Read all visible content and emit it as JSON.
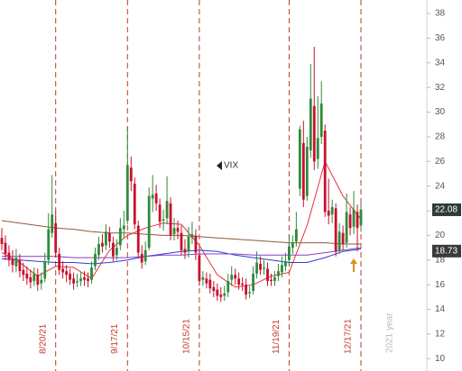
{
  "chart_data": {
    "type": "candlestick",
    "symbol": "VIX",
    "year_label": "2021 year",
    "categories": [
      null,
      null,
      null,
      null,
      null,
      null,
      null,
      null,
      null,
      null,
      null,
      null,
      null,
      null,
      null,
      "8/20/21",
      null,
      null,
      null,
      null,
      null,
      null,
      null,
      null,
      null,
      null,
      null,
      null,
      null,
      null,
      null,
      null,
      null,
      null,
      null,
      "9/17/21",
      null,
      null,
      null,
      null,
      null,
      null,
      null,
      null,
      null,
      null,
      null,
      null,
      null,
      null,
      null,
      null,
      null,
      null,
      null,
      "10/15/21",
      null,
      null,
      null,
      null,
      null,
      null,
      null,
      null,
      null,
      null,
      null,
      null,
      null,
      null,
      null,
      null,
      null,
      null,
      null,
      null,
      null,
      null,
      null,
      null,
      "11/19/21",
      null,
      null,
      null,
      null,
      null,
      null,
      null,
      null,
      null,
      null,
      null,
      null,
      null,
      null,
      null,
      null,
      null,
      null,
      null,
      "12/17/21"
    ],
    "open": [
      19.8,
      19.4,
      18.6,
      18.1,
      17.5,
      18.0,
      17.2,
      16.9,
      16.6,
      16.3,
      16.8,
      16.1,
      16.5,
      18.0,
      20.2,
      21.0,
      18.5,
      17.3,
      17.1,
      16.9,
      16.5,
      16.2,
      16.3,
      16.6,
      16.5,
      16.4,
      17.5,
      18.4,
      19.4,
      19.2,
      20.2,
      19.4,
      18.4,
      19.2,
      20.5,
      21.2,
      25.5,
      24.2,
      20.8,
      18.5,
      17.9,
      19.0,
      23.0,
      23.4,
      22.5,
      21.2,
      21.4,
      22.6,
      20.1,
      20.6,
      20.2,
      18.9,
      18.7,
      19.8,
      20.0,
      18.4,
      16.4,
      16.5,
      16.4,
      15.8,
      15.6,
      15.2,
      15.1,
      15.4,
      16.4,
      16.8,
      16.5,
      16.1,
      16.0,
      15.3,
      15.5,
      16.9,
      17.7,
      17.3,
      17.3,
      16.4,
      16.3,
      16.7,
      17.0,
      17.5,
      18.0,
      19.0,
      19.5,
      23.8,
      27.5,
      23.2,
      26.9,
      30.5,
      26.2,
      28.0,
      28.5,
      22.0,
      21.7,
      22.2,
      18.8,
      20.2,
      19.4,
      21.7,
      20.7,
      21.9,
      20.8
    ],
    "high": [
      20.6,
      20.0,
      19.2,
      18.8,
      18.9,
      18.5,
      17.8,
      17.5,
      17.2,
      17.4,
      17.3,
      17.0,
      18.6,
      21.8,
      24.9,
      22.0,
      19.0,
      17.9,
      17.6,
      17.3,
      17.0,
      16.9,
      17.0,
      17.1,
      17.0,
      17.9,
      19.0,
      19.9,
      20.1,
      20.9,
      20.7,
      19.9,
      19.7,
      21.4,
      22.0,
      28.8,
      26.4,
      24.7,
      21.2,
      19.2,
      19.5,
      23.9,
      24.9,
      24.1,
      23.0,
      22.1,
      24.8,
      23.1,
      21.4,
      21.2,
      20.8,
      19.7,
      20.7,
      21.1,
      20.5,
      19.0,
      17.1,
      17.0,
      16.9,
      16.3,
      16.1,
      15.8,
      15.9,
      16.9,
      17.5,
      17.3,
      17.0,
      16.6,
      16.5,
      15.9,
      17.5,
      18.7,
      18.3,
      18.0,
      17.8,
      16.9,
      17.1,
      17.7,
      18.3,
      18.6,
      20.1,
      20.0,
      21.9,
      28.9,
      29.3,
      28.0,
      33.9,
      35.3,
      31.3,
      32.5,
      29.0,
      24.6,
      22.9,
      22.6,
      21.0,
      20.8,
      23.4,
      22.3,
      23.6,
      22.5,
      22.6
    ],
    "low": [
      18.8,
      18.0,
      17.5,
      17.0,
      17.0,
      16.6,
      16.3,
      16.0,
      15.7,
      15.9,
      15.5,
      15.6,
      16.2,
      17.6,
      19.8,
      18.2,
      16.8,
      16.5,
      16.2,
      16.0,
      15.6,
      15.8,
      15.9,
      15.9,
      15.8,
      16.1,
      17.2,
      18.0,
      18.6,
      18.8,
      19.0,
      17.9,
      18.0,
      18.8,
      19.8,
      20.9,
      23.6,
      20.5,
      18.2,
      17.3,
      17.6,
      18.8,
      21.9,
      22.0,
      20.6,
      20.4,
      20.9,
      19.6,
      19.6,
      19.7,
      18.4,
      18.1,
      18.2,
      19.3,
      18.0,
      15.9,
      15.9,
      15.7,
      15.3,
      15.0,
      14.7,
      14.6,
      14.7,
      15.0,
      15.9,
      16.0,
      15.6,
      15.5,
      14.8,
      14.9,
      15.2,
      16.5,
      16.8,
      16.8,
      15.9,
      15.9,
      15.9,
      16.3,
      16.6,
      17.1,
      17.6,
      18.5,
      19.1,
      23.2,
      22.3,
      22.8,
      26.3,
      25.3,
      25.4,
      27.4,
      21.5,
      20.9,
      21.0,
      18.3,
      18.5,
      18.8,
      19.0,
      20.0,
      20.1,
      18.7,
      20.3
    ],
    "close": [
      19.3,
      18.5,
      18.0,
      17.6,
      18.2,
      17.1,
      16.8,
      16.5,
      16.2,
      16.9,
      16.0,
      16.4,
      17.9,
      20.5,
      21.7,
      18.6,
      17.2,
      17.0,
      16.8,
      16.4,
      16.1,
      16.3,
      16.5,
      16.4,
      16.3,
      17.4,
      18.5,
      19.3,
      19.1,
      20.3,
      19.5,
      18.3,
      19.0,
      20.6,
      20.8,
      25.7,
      24.4,
      20.9,
      18.6,
      17.8,
      18.8,
      23.2,
      23.3,
      22.6,
      21.1,
      21.3,
      22.8,
      20.0,
      20.6,
      20.3,
      18.8,
      18.6,
      19.9,
      20.1,
      18.6,
      16.3,
      16.6,
      16.1,
      15.7,
      15.5,
      15.1,
      15.0,
      15.3,
      16.3,
      16.8,
      16.5,
      16.0,
      16.0,
      15.2,
      15.4,
      16.9,
      17.8,
      17.2,
      17.4,
      16.3,
      16.3,
      16.6,
      17.1,
      17.6,
      17.9,
      19.1,
      19.4,
      20.5,
      28.6,
      22.9,
      27.2,
      31.1,
      26.0,
      27.9,
      30.7,
      21.9,
      21.6,
      22.3,
      18.7,
      20.3,
      19.3,
      21.9,
      20.6,
      22.1,
      20.6,
      22.1
    ],
    "up_color": "#2e8b3a",
    "down_color": "#c8102e",
    "series": [
      {
        "color": "#8b5a3c",
        "x": [
          0,
          5,
          10,
          15,
          20,
          25,
          30,
          35,
          40,
          45,
          50,
          55,
          60,
          65,
          70,
          75,
          80,
          85,
          90,
          95,
          100
        ],
        "values": [
          21.2,
          21.0,
          20.8,
          20.6,
          20.5,
          20.3,
          20.2,
          20.2,
          20.1,
          20.0,
          20.0,
          19.9,
          19.8,
          19.7,
          19.6,
          19.5,
          19.4,
          19.4,
          19.4,
          19.3,
          19.3
        ]
      },
      {
        "color": "#e0303a",
        "x": [
          0,
          5,
          10,
          15,
          20,
          25,
          30,
          35,
          40,
          45,
          50,
          55,
          60,
          65,
          70,
          75,
          80,
          85,
          90,
          95,
          100
        ],
        "values": [
          18.6,
          17.8,
          16.7,
          17.5,
          17.4,
          16.5,
          18.8,
          20.0,
          20.6,
          21.0,
          20.9,
          19.2,
          16.8,
          15.8,
          16.0,
          16.7,
          17.0,
          20.8,
          26.0,
          23.2,
          21.3
        ]
      },
      {
        "color": "#2a3fd0",
        "x": [
          0,
          5,
          10,
          15,
          20,
          25,
          30,
          35,
          40,
          45,
          50,
          55,
          60,
          65,
          70,
          75,
          80,
          85,
          90,
          95,
          100
        ],
        "values": [
          18.1,
          18.0,
          17.9,
          17.8,
          17.8,
          17.7,
          17.8,
          18.0,
          18.3,
          18.5,
          18.7,
          18.8,
          18.7,
          18.4,
          18.2,
          18.0,
          17.8,
          17.8,
          18.2,
          18.7,
          18.9
        ]
      },
      {
        "color": "#8a3fc0",
        "x": [
          0,
          5,
          10,
          15,
          20,
          25,
          30,
          35,
          40,
          45,
          50,
          55,
          60,
          65,
          70,
          75,
          80,
          85,
          90,
          95,
          100
        ],
        "values": [
          18.3,
          18.3,
          18.3,
          18.3,
          18.2,
          18.2,
          18.2,
          18.2,
          18.3,
          18.4,
          18.4,
          18.5,
          18.5,
          18.5,
          18.4,
          18.4,
          18.4,
          18.4,
          18.6,
          18.8,
          19.0
        ]
      }
    ],
    "price_tags": [
      {
        "value": 22.08,
        "color": "#2f3b3b"
      },
      {
        "value": 18.73,
        "color": "#3a3a3a"
      }
    ],
    "ylim": [
      9,
      39.1
    ],
    "yticks": [
      10,
      12,
      14,
      16,
      18,
      20,
      22,
      24,
      26,
      28,
      30,
      32,
      34,
      36,
      38
    ],
    "marker_color": "#c0392b"
  }
}
